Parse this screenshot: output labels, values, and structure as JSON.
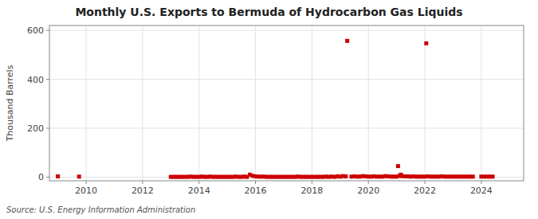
{
  "chart_data": {
    "type": "scatter",
    "title": "Monthly U.S. Exports to Bermuda of Hydrocarbon Gas Liquids",
    "y_label": "Thousand Barrels",
    "source": "Source: U.S. Energy Information Administration",
    "x": [
      2009.0,
      2009.75,
      2013.0,
      2013.1,
      2013.2,
      2013.3,
      2013.4,
      2013.5,
      2013.6,
      2013.7,
      2013.8,
      2013.9,
      2014.0,
      2014.1,
      2014.2,
      2014.3,
      2014.4,
      2014.5,
      2014.6,
      2014.7,
      2014.8,
      2014.9,
      2015.0,
      2015.1,
      2015.2,
      2015.3,
      2015.4,
      2015.5,
      2015.6,
      2015.7,
      2015.8,
      2015.9,
      2016.0,
      2016.1,
      2016.2,
      2016.3,
      2016.4,
      2016.5,
      2016.6,
      2016.7,
      2016.8,
      2016.9,
      2017.0,
      2017.1,
      2017.2,
      2017.3,
      2017.4,
      2017.5,
      2017.6,
      2017.7,
      2017.8,
      2017.9,
      2018.0,
      2018.1,
      2018.2,
      2018.3,
      2018.4,
      2018.5,
      2018.6,
      2018.7,
      2018.8,
      2018.9,
      2019.0,
      2019.1,
      2019.2,
      2019.25,
      2019.4,
      2019.5,
      2019.6,
      2019.7,
      2019.8,
      2019.9,
      2020.0,
      2020.1,
      2020.2,
      2020.3,
      2020.4,
      2020.5,
      2020.6,
      2020.7,
      2020.8,
      2020.9,
      2021.0,
      2021.05,
      2021.1,
      2021.15,
      2021.2,
      2021.3,
      2021.4,
      2021.5,
      2021.6,
      2021.7,
      2021.8,
      2021.9,
      2022.0,
      2022.05,
      2022.1,
      2022.2,
      2022.3,
      2022.4,
      2022.5,
      2022.6,
      2022.7,
      2022.8,
      2022.9,
      2023.0,
      2023.1,
      2023.2,
      2023.3,
      2023.4,
      2023.5,
      2023.6,
      2023.7,
      2024.0,
      2024.1,
      2024.2,
      2024.3,
      2024.4
    ],
    "values": [
      3,
      2,
      1,
      1,
      1,
      1,
      1,
      1,
      1,
      2,
      1,
      1,
      1,
      2,
      1,
      1,
      2,
      1,
      1,
      1,
      1,
      1,
      1,
      1,
      1,
      2,
      1,
      1,
      2,
      1,
      10,
      5,
      3,
      2,
      2,
      2,
      1,
      1,
      1,
      1,
      1,
      1,
      1,
      1,
      1,
      1,
      1,
      2,
      1,
      1,
      1,
      1,
      1,
      1,
      1,
      1,
      1,
      2,
      1,
      2,
      1,
      3,
      2,
      4,
      3,
      557,
      2,
      3,
      2,
      2,
      4,
      3,
      2,
      2,
      3,
      2,
      2,
      2,
      4,
      3,
      2,
      2,
      2,
      45,
      5,
      10,
      4,
      3,
      3,
      2,
      3,
      2,
      2,
      2,
      2,
      547,
      3,
      2,
      2,
      2,
      2,
      3,
      2,
      2,
      2,
      2,
      2,
      2,
      2,
      2,
      2,
      2,
      2,
      2,
      2,
      2,
      2,
      2
    ],
    "color": "#cc0000",
    "marker": "square",
    "xlim": [
      2008.7,
      2025.5
    ],
    "xticks": [
      2010,
      2012,
      2014,
      2016,
      2018,
      2020,
      2022,
      2024
    ],
    "ylim": [
      -15,
      620
    ],
    "yticks": [
      0,
      200,
      400,
      600
    ],
    "grid": true
  }
}
